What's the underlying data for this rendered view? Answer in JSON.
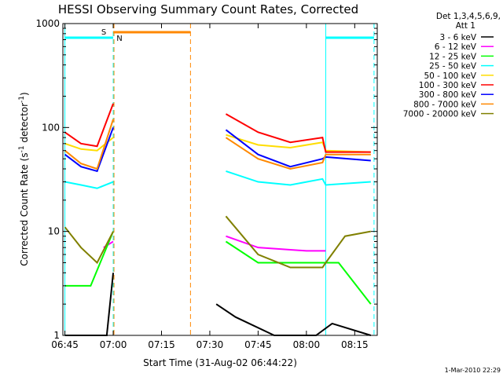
{
  "chart_data": {
    "type": "line",
    "title": "HESSI Observing Summary Count Rates, Corrected",
    "xlabel": "Start Time (31-Aug-02 06:44:22)",
    "ylabel_main": "Corrected Count Rate (s",
    "ylabel_exp1": "-1",
    "ylabel_mid": " detector",
    "ylabel_exp2": "-1",
    "ylabel_end": ")",
    "y_scale": "log",
    "ylim": [
      1,
      1000
    ],
    "xlim": [
      "06:44:22",
      "08:22:00"
    ],
    "x_ticks": [
      "06:45",
      "07:00",
      "07:15",
      "07:30",
      "07:45",
      "08:00",
      "08:15"
    ],
    "y_ticks": [
      "1",
      "10",
      "100",
      "1000"
    ],
    "legend_header": [
      "Det 1,3,4,5,6,9,",
      "Att 1"
    ],
    "legend_position": "right",
    "timestamp": "1-Mar-2010 22:29",
    "series": [
      {
        "name": "3 - 6 keV",
        "color": "#000000",
        "x": [
          "06:45",
          "06:58",
          "07:00",
          "07:26",
          "07:32",
          "07:38",
          "07:50",
          "08:03",
          "08:08",
          "08:20"
        ],
        "y": [
          1,
          1,
          4,
          null,
          2,
          1.5,
          1,
          1,
          1.3,
          1
        ]
      },
      {
        "name": "6 - 12 keV",
        "color": "#ff00ff",
        "x": [
          "06:57",
          "07:00",
          "07:26",
          "07:35",
          "07:45",
          "08:00",
          "08:06"
        ],
        "y": [
          7,
          8,
          null,
          9,
          7,
          6.5,
          6.5
        ]
      },
      {
        "name": "12 - 25 keV",
        "color": "#00ff00",
        "x": [
          "06:45",
          "06:53",
          "07:00",
          "07:26",
          "07:35",
          "07:45",
          "08:05",
          "08:10",
          "08:20"
        ],
        "y": [
          3,
          3,
          10,
          null,
          8,
          5,
          5,
          5,
          2
        ]
      },
      {
        "name": "25 - 50 keV",
        "color": "#00ffff",
        "x": [
          "06:45",
          "06:50",
          "06:55",
          "07:00",
          "07:26",
          "07:35",
          "07:45",
          "07:55",
          "08:05",
          "08:06",
          "08:20"
        ],
        "y": [
          30,
          28,
          26,
          30,
          null,
          38,
          30,
          28,
          32,
          28,
          30
        ]
      },
      {
        "name": "50 - 100 keV",
        "color": "#ffdd00",
        "x": [
          "06:45",
          "06:50",
          "06:55",
          "07:00",
          "07:26",
          "07:35",
          "07:45",
          "07:55",
          "08:05",
          "08:06",
          "08:20"
        ],
        "y": [
          70,
          62,
          60,
          80,
          null,
          85,
          68,
          64,
          72,
          60,
          58
        ]
      },
      {
        "name": "100 - 300 keV",
        "color": "#ff0000",
        "x": [
          "06:45",
          "06:50",
          "06:55",
          "07:00",
          "07:26",
          "07:35",
          "07:45",
          "07:55",
          "08:05",
          "08:06",
          "08:20"
        ],
        "y": [
          90,
          70,
          66,
          170,
          null,
          135,
          90,
          72,
          80,
          58,
          58
        ]
      },
      {
        "name": "300 - 800 keV",
        "color": "#0000ff",
        "x": [
          "06:45",
          "06:50",
          "06:55",
          "07:00",
          "07:26",
          "07:35",
          "07:45",
          "07:55",
          "08:05",
          "08:06",
          "08:20"
        ],
        "y": [
          55,
          42,
          38,
          100,
          null,
          95,
          55,
          42,
          50,
          52,
          48
        ]
      },
      {
        "name": "800 - 7000 keV",
        "color": "#ff8800",
        "x": [
          "06:45",
          "06:50",
          "06:55",
          "07:00",
          "07:26",
          "07:35",
          "07:45",
          "07:55",
          "08:05",
          "08:06",
          "08:20"
        ],
        "y": [
          60,
          45,
          40,
          120,
          null,
          80,
          50,
          40,
          46,
          55,
          55
        ]
      },
      {
        "name": "7000 - 20000 keV",
        "color": "#808000",
        "x": [
          "06:45",
          "06:50",
          "06:55",
          "07:00",
          "07:26",
          "07:35",
          "07:45",
          "07:55",
          "08:05",
          "08:06",
          "08:12",
          "08:20"
        ],
        "y": [
          11,
          7,
          5,
          10,
          null,
          14,
          6,
          4.5,
          4.5,
          5,
          9,
          10
        ]
      }
    ],
    "annotations": [
      {
        "text": "S",
        "color": "#ff8800",
        "x": "07:00"
      },
      {
        "text": "N",
        "color": "#00ffff",
        "x": "07:00"
      }
    ],
    "markers": [
      {
        "kind": "vline",
        "style": "solid",
        "color": "#00ffff",
        "x": "06:45"
      },
      {
        "kind": "vline",
        "style": "dashed",
        "color": "#00ffff",
        "x": "07:00"
      },
      {
        "kind": "vline",
        "style": "dashed",
        "color": "#ff8800",
        "x": "07:00"
      },
      {
        "kind": "vline",
        "style": "dashed",
        "color": "#ff8800",
        "x": "07:24"
      },
      {
        "kind": "vline",
        "style": "solid",
        "color": "#00ffff",
        "x": "08:06"
      },
      {
        "kind": "vline",
        "style": "dashed",
        "color": "#00ffff",
        "x": "08:21"
      },
      {
        "kind": "hbar",
        "color": "#00ffff",
        "x_start": "06:45",
        "x_end": "07:00"
      },
      {
        "kind": "hbar",
        "color": "#ff8800",
        "x_start": "07:00",
        "x_end": "07:24"
      },
      {
        "kind": "hbar",
        "color": "#00ffff",
        "x_start": "08:06",
        "x_end": "08:21"
      }
    ]
  }
}
